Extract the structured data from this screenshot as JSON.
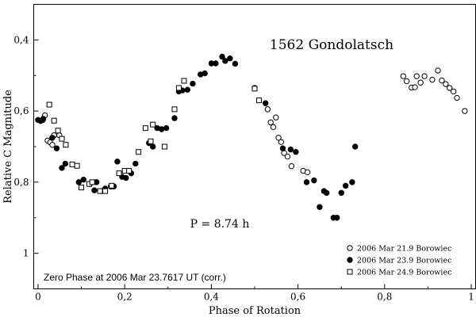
{
  "chart_data": {
    "type": "scatter",
    "title": "1562 Gondolatsch",
    "xlabel": "Phase of Rotation",
    "ylabel": "Relative C Magnitude",
    "xlim": [
      -0.01,
      1.01
    ],
    "ylim": [
      0.3,
      1.1
    ],
    "y_inverted": true,
    "x_ticks": [
      {
        "value": 0,
        "label": "0"
      },
      {
        "value": 0.2,
        "label": "0,2"
      },
      {
        "value": 0.4,
        "label": "0,4"
      },
      {
        "value": 0.6,
        "label": "0,6"
      },
      {
        "value": 0.8,
        "label": "0,8"
      },
      {
        "value": 1,
        "label": "1"
      }
    ],
    "y_ticks": [
      {
        "value": 0.4,
        "label": "0,4"
      },
      {
        "value": 0.6,
        "label": "0,6"
      },
      {
        "value": 0.8,
        "label": "0,8"
      },
      {
        "value": 1,
        "label": "1"
      }
    ],
    "grid": false,
    "legend_position": "bottom-right",
    "annotations": {
      "period": "P = 8.74 h",
      "zero_phase": "Zero Phase at 2006 Mar 23.7617 UT (corr.)"
    },
    "series": [
      {
        "name": "2006 Mar 21.9 Borowiec",
        "marker": "open-circle",
        "points": [
          [
            0.011,
            0.625
          ],
          [
            0.016,
            0.612
          ],
          [
            0.022,
            0.683
          ],
          [
            0.028,
            0.688
          ],
          [
            0.033,
            0.695
          ],
          [
            0.037,
            0.668
          ],
          [
            0.049,
            0.668
          ],
          [
            0.53,
            0.595
          ],
          [
            0.537,
            0.632
          ],
          [
            0.543,
            0.645
          ],
          [
            0.549,
            0.618
          ],
          [
            0.555,
            0.675
          ],
          [
            0.561,
            0.687
          ],
          [
            0.568,
            0.718
          ],
          [
            0.576,
            0.728
          ],
          [
            0.585,
            0.755
          ],
          [
            0.612,
            0.768
          ],
          [
            0.622,
            0.772
          ],
          [
            0.843,
            0.502
          ],
          [
            0.851,
            0.516
          ],
          [
            0.862,
            0.534
          ],
          [
            0.87,
            0.533
          ],
          [
            0.874,
            0.502
          ],
          [
            0.883,
            0.52
          ],
          [
            0.892,
            0.502
          ],
          [
            0.91,
            0.512
          ],
          [
            0.923,
            0.486
          ],
          [
            0.932,
            0.514
          ],
          [
            0.941,
            0.524
          ],
          [
            0.95,
            0.535
          ],
          [
            0.959,
            0.545
          ],
          [
            0.967,
            0.563
          ],
          [
            0.985,
            0.6
          ]
        ]
      },
      {
        "name": "2006 Mar 23.9 Borowiec",
        "marker": "filled-circle",
        "points": [
          [
            0.0,
            0.625
          ],
          [
            0.006,
            0.628
          ],
          [
            0.012,
            0.622
          ],
          [
            0.033,
            0.675
          ],
          [
            0.043,
            0.705
          ],
          [
            0.055,
            0.76
          ],
          [
            0.063,
            0.748
          ],
          [
            0.094,
            0.8
          ],
          [
            0.105,
            0.793
          ],
          [
            0.12,
            0.805
          ],
          [
            0.13,
            0.823
          ],
          [
            0.135,
            0.8
          ],
          [
            0.146,
            0.825
          ],
          [
            0.155,
            0.818
          ],
          [
            0.168,
            0.812
          ],
          [
            0.175,
            0.812
          ],
          [
            0.183,
            0.742
          ],
          [
            0.194,
            0.785
          ],
          [
            0.203,
            0.788
          ],
          [
            0.215,
            0.775
          ],
          [
            0.225,
            0.748
          ],
          [
            0.256,
            0.69
          ],
          [
            0.265,
            0.7
          ],
          [
            0.275,
            0.648
          ],
          [
            0.285,
            0.651
          ],
          [
            0.296,
            0.648
          ],
          [
            0.315,
            0.62
          ],
          [
            0.325,
            0.545
          ],
          [
            0.333,
            0.542
          ],
          [
            0.345,
            0.54
          ],
          [
            0.357,
            0.523
          ],
          [
            0.375,
            0.497
          ],
          [
            0.385,
            0.494
          ],
          [
            0.4,
            0.466
          ],
          [
            0.41,
            0.466
          ],
          [
            0.425,
            0.447
          ],
          [
            0.432,
            0.459
          ],
          [
            0.443,
            0.452
          ],
          [
            0.455,
            0.467
          ],
          [
            0.5,
            0.535
          ],
          [
            0.525,
            0.578
          ],
          [
            0.565,
            0.705
          ],
          [
            0.583,
            0.708
          ],
          [
            0.595,
            0.715
          ],
          [
            0.62,
            0.8
          ],
          [
            0.637,
            0.795
          ],
          [
            0.65,
            0.87
          ],
          [
            0.66,
            0.825
          ],
          [
            0.666,
            0.83
          ],
          [
            0.682,
            0.9
          ],
          [
            0.69,
            0.9
          ],
          [
            0.7,
            0.83
          ],
          [
            0.71,
            0.81
          ],
          [
            0.725,
            0.8
          ],
          [
            0.732,
            0.7
          ]
        ]
      },
      {
        "name": "2006 Mar 24.9 Borowiec",
        "marker": "open-square",
        "points": [
          [
            0.026,
            0.582
          ],
          [
            0.037,
            0.627
          ],
          [
            0.046,
            0.655
          ],
          [
            0.055,
            0.678
          ],
          [
            0.064,
            0.695
          ],
          [
            0.079,
            0.75
          ],
          [
            0.09,
            0.754
          ],
          [
            0.1,
            0.815
          ],
          [
            0.118,
            0.805
          ],
          [
            0.125,
            0.8
          ],
          [
            0.143,
            0.825
          ],
          [
            0.155,
            0.825
          ],
          [
            0.17,
            0.81
          ],
          [
            0.187,
            0.775
          ],
          [
            0.2,
            0.768
          ],
          [
            0.21,
            0.768
          ],
          [
            0.232,
            0.715
          ],
          [
            0.248,
            0.648
          ],
          [
            0.26,
            0.685
          ],
          [
            0.265,
            0.638
          ],
          [
            0.292,
            0.7
          ],
          [
            0.315,
            0.595
          ],
          [
            0.325,
            0.535
          ],
          [
            0.337,
            0.515
          ],
          [
            0.5,
            0.537
          ],
          [
            0.51,
            0.57
          ]
        ]
      }
    ]
  }
}
